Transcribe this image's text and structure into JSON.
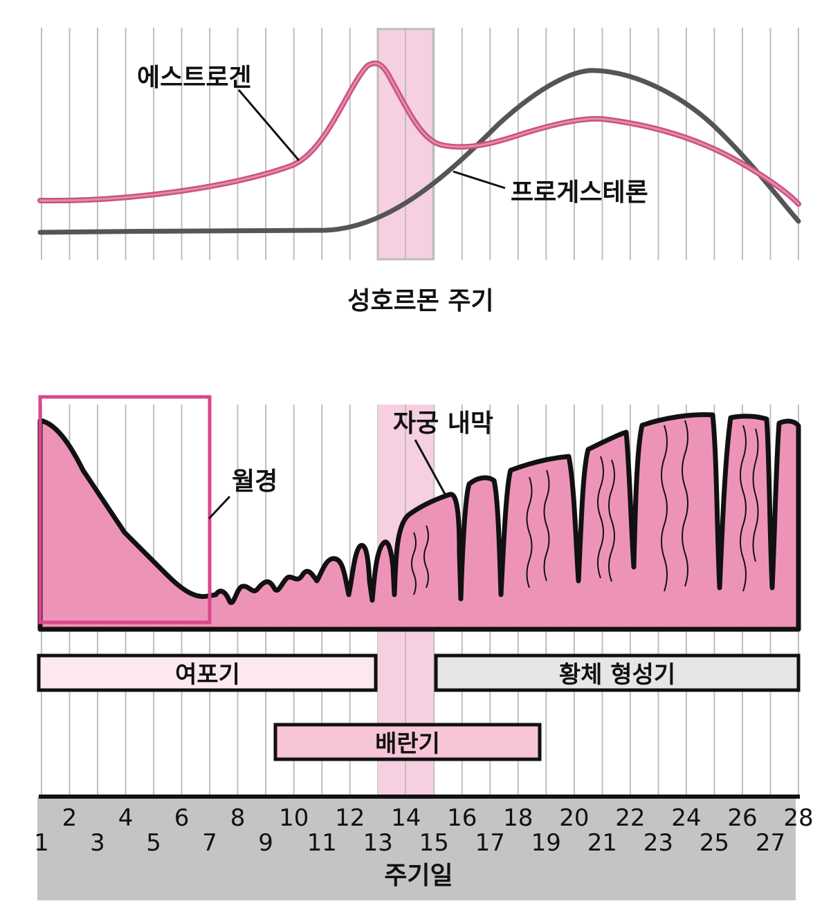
{
  "hormone_chart": {
    "title": "성호르몬 주기",
    "estrogen_label": "에스트로겐",
    "progesterone_label": "프로게스테론",
    "colors": {
      "estrogen": "#c9527f",
      "progesterone": "#555555",
      "ovulation_band": "#f6cfe0",
      "grid": "#bdbdbd"
    }
  },
  "endometrium": {
    "label": "자궁 내막",
    "menstruation_label": "월경",
    "colors": {
      "tissue": "#ee93b8",
      "outline": "#111111",
      "menstruation_box": "#d9478a"
    }
  },
  "phases": {
    "follicular": "여포기",
    "luteal": "황체 형성기",
    "ovulation": "배란기",
    "colors": {
      "follicular_fill": "#fde8f0",
      "luteal_fill": "#e6e6e6",
      "ovulation_fill": "#f7c4d8"
    }
  },
  "axis": {
    "label": "주기일",
    "days": [
      "1",
      "2",
      "3",
      "4",
      "5",
      "6",
      "7",
      "8",
      "9",
      "10",
      "11",
      "12",
      "13",
      "14",
      "15",
      "16",
      "17",
      "18",
      "19",
      "20",
      "21",
      "22",
      "23",
      "24",
      "25",
      "26",
      "27",
      "28"
    ],
    "band_color": "#c4c4c6"
  }
}
